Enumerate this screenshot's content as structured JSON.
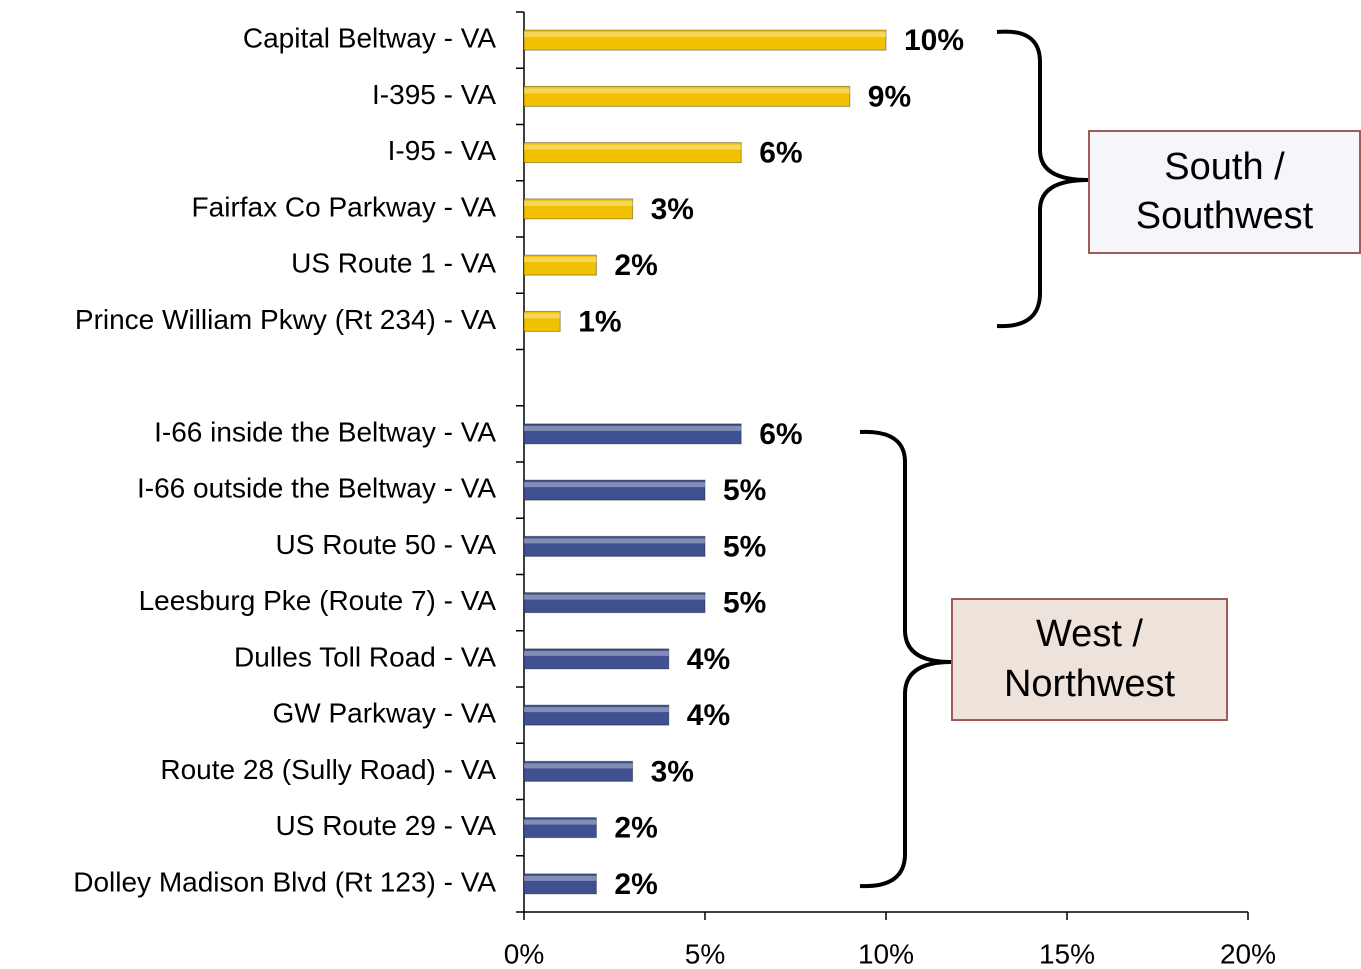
{
  "chart_data": {
    "type": "bar",
    "orientation": "horizontal",
    "categories": [
      "Capital Beltway - VA",
      "I-395 - VA",
      "I-95 - VA",
      "Fairfax Co Parkway - VA",
      "US Route 1 - VA",
      "Prince William Pkwy (Rt 234) - VA",
      null,
      "I-66 inside the Beltway - VA",
      "I-66 outside the Beltway - VA",
      "US Route 50 - VA",
      "Leesburg Pke (Route 7) - VA",
      "Dulles Toll Road - VA",
      "GW Parkway - VA",
      "Route 28 (Sully Road) - VA",
      "US Route 29 - VA",
      "Dolley Madison Blvd (Rt 123) - VA"
    ],
    "series": [
      {
        "name": "South / Southwest",
        "color": "#f2c200",
        "box_fill": "#f6f6fa",
        "values": [
          10,
          9,
          6,
          3,
          2,
          1,
          null,
          null,
          null,
          null,
          null,
          null,
          null,
          null,
          null,
          null
        ],
        "value_labels": [
          "10%",
          "9%",
          "6%",
          "3%",
          "2%",
          "1%",
          null,
          null,
          null,
          null,
          null,
          null,
          null,
          null,
          null,
          null
        ]
      },
      {
        "name": "West / Northwest",
        "color": "#3f5190",
        "box_fill": "#ede3da",
        "values": [
          null,
          null,
          null,
          null,
          null,
          null,
          null,
          6,
          5,
          5,
          5,
          4,
          4,
          3,
          2,
          2
        ],
        "value_labels": [
          null,
          null,
          null,
          null,
          null,
          null,
          null,
          "6%",
          "5%",
          "5%",
          "5%",
          "4%",
          "4%",
          "3%",
          "2%",
          "2%"
        ]
      }
    ],
    "xlim": [
      0,
      20
    ],
    "xticks": [
      {
        "value": 0,
        "label": "0%"
      },
      {
        "value": 5,
        "label": "5%"
      },
      {
        "value": 10,
        "label": "10%"
      },
      {
        "value": 15,
        "label": "15%"
      },
      {
        "value": 20,
        "label": "20%"
      }
    ]
  }
}
